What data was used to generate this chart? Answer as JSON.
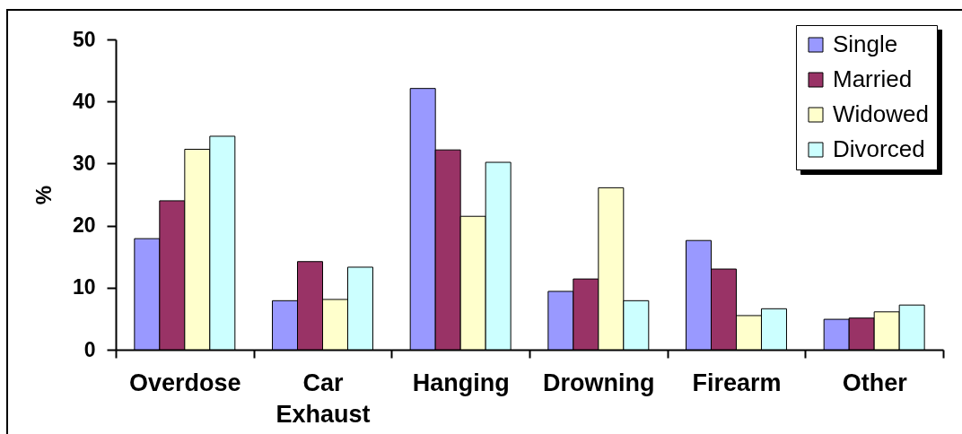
{
  "chart_data": {
    "type": "bar",
    "ylabel": "%",
    "categories": [
      "Overdose",
      "Car Exhaust",
      "Hanging",
      "Drowning",
      "Firearm",
      "Other"
    ],
    "series": [
      {
        "name": "Single",
        "color": "#9999ff",
        "values": [
          17.9,
          7.9,
          42.1,
          9.4,
          17.6,
          4.9
        ]
      },
      {
        "name": "Married",
        "color": "#993366",
        "values": [
          24.0,
          14.2,
          32.2,
          11.4,
          13.0,
          5.1
        ]
      },
      {
        "name": "Widowed",
        "color": "#ffffcc",
        "values": [
          32.3,
          8.1,
          21.5,
          26.1,
          5.5,
          6.1
        ]
      },
      {
        "name": "Divorced",
        "color": "#ccffff",
        "values": [
          34.4,
          13.3,
          30.2,
          7.9,
          6.6,
          7.2
        ]
      }
    ],
    "ylim": [
      0,
      50
    ],
    "yticks": [
      0,
      10,
      20,
      30,
      40,
      50
    ],
    "legend": "top right"
  }
}
